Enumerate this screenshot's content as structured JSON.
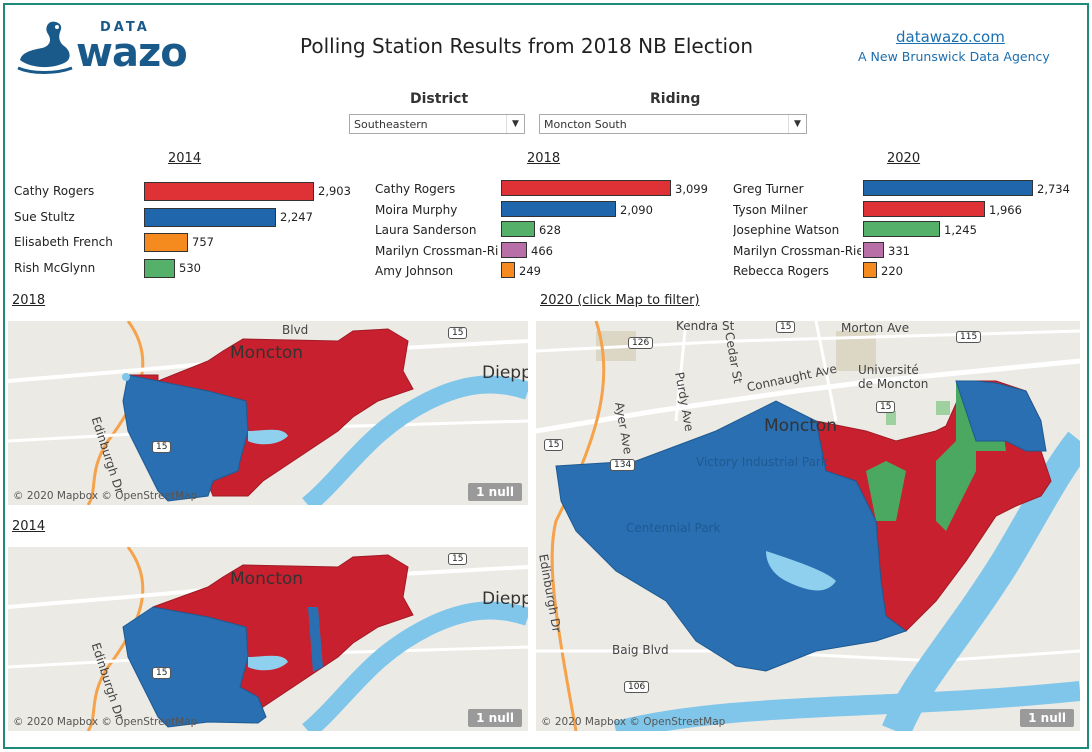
{
  "header": {
    "logo_small": "DATA",
    "logo_big": "wazo",
    "title": "Polling Station Results from 2018 NB Election",
    "site_link": "datawazo.com",
    "site_sub": "A New Brunswick Data Agency"
  },
  "filters": {
    "district_label": "District",
    "district_value": "Southeastern",
    "riding_label": "Riding",
    "riding_value": "Moncton South"
  },
  "colors": {
    "red": "#de3237",
    "blue": "#2066ac",
    "green": "#55b06a",
    "orange": "#f58a1f",
    "purple": "#b86ea6",
    "map_red": "#c8202e",
    "map_blue": "#2a6fb2",
    "map_green": "#4aa860"
  },
  "results": [
    {
      "year": "2014",
      "max": 2903,
      "candidates": [
        {
          "name": "Cathy Rogers",
          "votes": 2903,
          "label": "2,903",
          "color": "#de3237"
        },
        {
          "name": "Sue Stultz",
          "votes": 2247,
          "label": "2,247",
          "color": "#2066ac"
        },
        {
          "name": "Elisabeth French",
          "votes": 757,
          "label": "757",
          "color": "#f58a1f"
        },
        {
          "name": "Rish McGlynn",
          "votes": 530,
          "label": "530",
          "color": "#55b06a"
        }
      ]
    },
    {
      "year": "2018",
      "max": 3099,
      "candidates": [
        {
          "name": "Cathy Rogers",
          "votes": 3099,
          "label": "3,099",
          "color": "#de3237"
        },
        {
          "name": "Moira Murphy",
          "votes": 2090,
          "label": "2,090",
          "color": "#2066ac"
        },
        {
          "name": "Laura Sanderson",
          "votes": 628,
          "label": "628",
          "color": "#55b06a"
        },
        {
          "name": "Marilyn Crossman-Ri..",
          "votes": 466,
          "label": "466",
          "color": "#b86ea6"
        },
        {
          "name": "Amy Johnson",
          "votes": 249,
          "label": "249",
          "color": "#f58a1f"
        }
      ]
    },
    {
      "year": "2020",
      "max": 2734,
      "candidates": [
        {
          "name": "Greg Turner",
          "votes": 2734,
          "label": "2,734",
          "color": "#2066ac"
        },
        {
          "name": "Tyson Milner",
          "votes": 1966,
          "label": "1,966",
          "color": "#de3237"
        },
        {
          "name": "Josephine Watson",
          "votes": 1245,
          "label": "1,245",
          "color": "#55b06a"
        },
        {
          "name": "Marilyn Crossman-Riel",
          "votes": 331,
          "label": "331",
          "color": "#b86ea6"
        },
        {
          "name": "Rebecca Rogers",
          "votes": 220,
          "label": "220",
          "color": "#f58a1f"
        }
      ]
    }
  ],
  "maps": {
    "map2018_title": "2018",
    "map2014_title": "2014",
    "map2020_title": "2020 (click Map to filter)",
    "attribution": "© 2020 Mapbox © OpenStreetMap",
    "null_badge": "1 null",
    "labels": {
      "moncton": "Moncton",
      "dieppe": "Dieppe",
      "edinburgh": "Edinburgh Dr",
      "blvd": "Blvd",
      "connaught": "Connaught Ave",
      "universite": "Université",
      "de_moncton": "de Moncton",
      "purdy": "Purdy Ave",
      "ayer": "Ayer Ave",
      "cedar": "Cedar St",
      "kendra": "Kendra St",
      "morton": "Morton Ave",
      "victory": "Victory Industrial Park",
      "centennial": "Centennial Park",
      "baig": "Baig Blvd",
      "r15": "15",
      "r126": "126",
      "r115": "115",
      "r106": "106",
      "r134": "134"
    }
  }
}
